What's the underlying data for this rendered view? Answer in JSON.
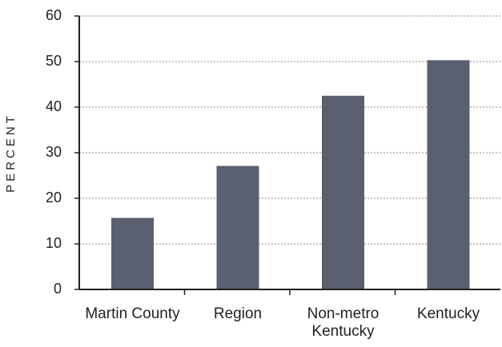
{
  "chart_data": {
    "type": "bar",
    "y_label": "PERCENT",
    "categories": [
      "Martin County",
      "Region",
      "Non-metro Kentucky",
      "Kentucky"
    ],
    "values": [
      15.7,
      27.1,
      42.5,
      50.3
    ],
    "color": "#5b6070",
    "ylim": [
      0,
      60
    ],
    "yticks": [
      0,
      10,
      20,
      30,
      40,
      50,
      60
    ],
    "grid": true
  }
}
